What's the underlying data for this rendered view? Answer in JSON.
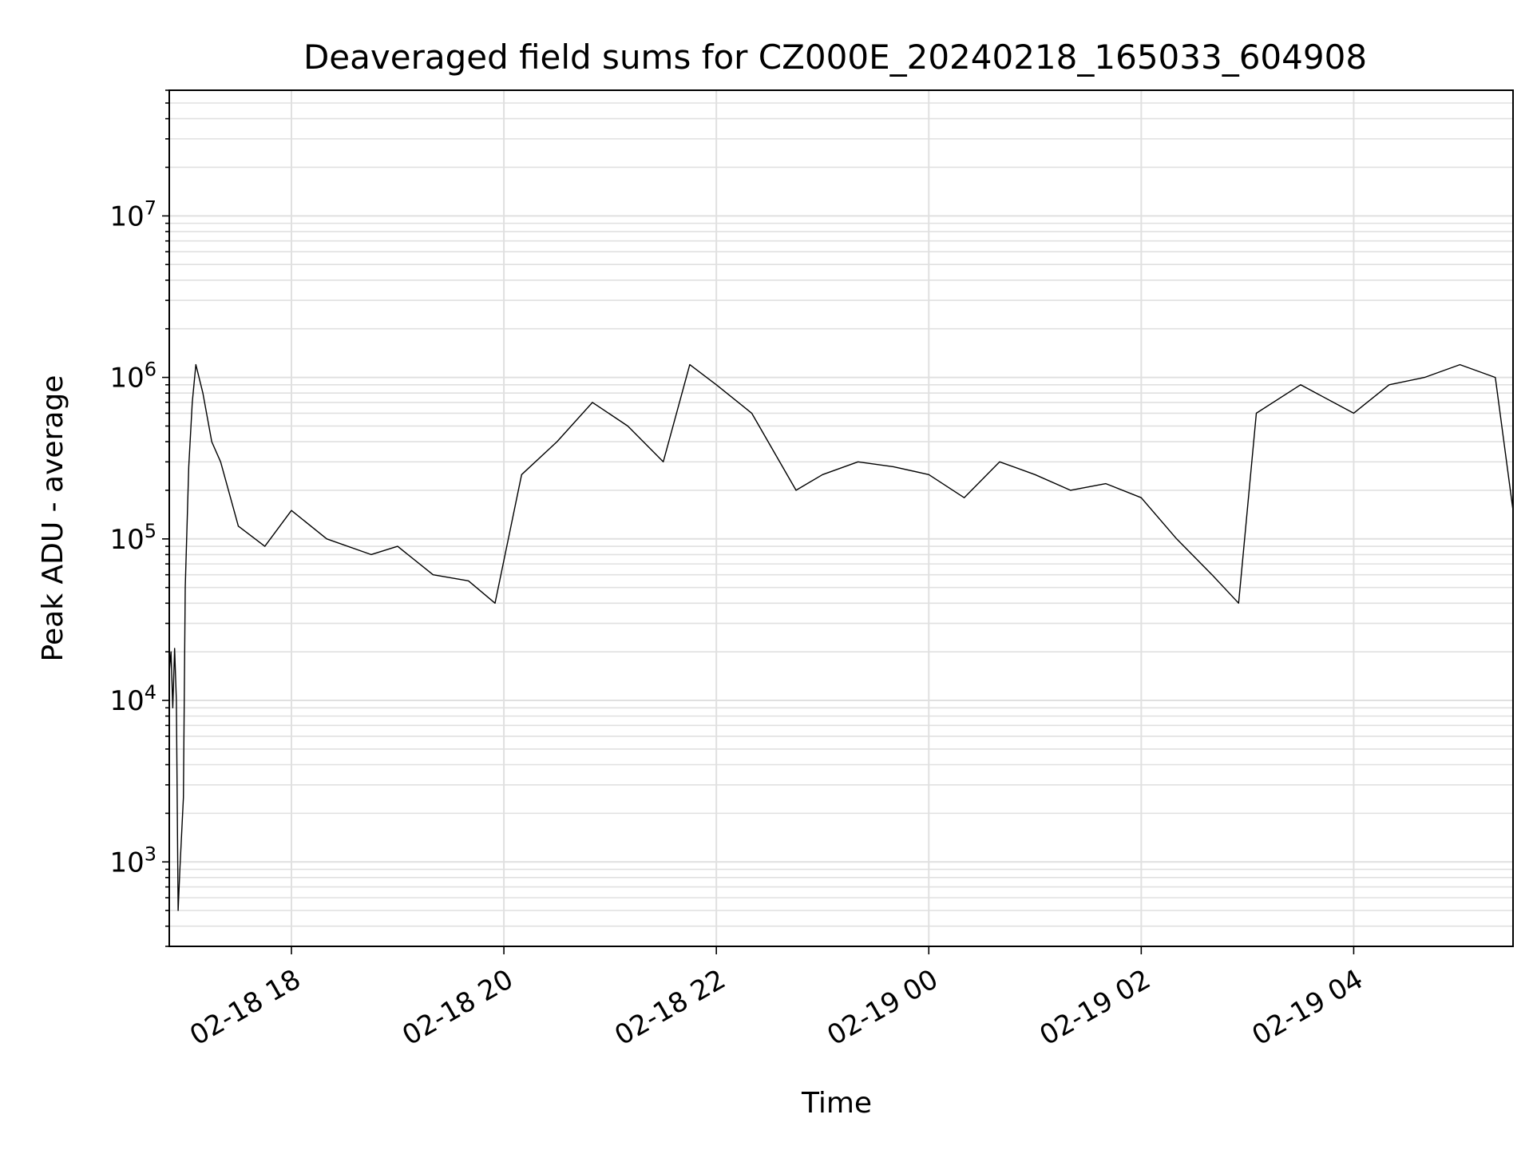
{
  "chart_data": {
    "type": "line",
    "title": "Deaveraged field sums for CZ000E_20240218_165033_604908",
    "xlabel": "Time",
    "ylabel": "Peak ADU - average",
    "yscale": "log",
    "ylim": [
      300,
      60000000
    ],
    "xlim": [
      "2024-02-18 16:51",
      "2024-02-19 05:30"
    ],
    "x_ticks": [
      {
        "t": "2024-02-18 18:00",
        "label": "02-18 18"
      },
      {
        "t": "2024-02-18 20:00",
        "label": "02-18 20"
      },
      {
        "t": "2024-02-18 22:00",
        "label": "02-18 22"
      },
      {
        "t": "2024-02-19 00:00",
        "label": "02-19 00"
      },
      {
        "t": "2024-02-19 02:00",
        "label": "02-19 02"
      },
      {
        "t": "2024-02-19 04:00",
        "label": "02-19 04"
      }
    ],
    "y_ticks": [
      {
        "value": 1000,
        "mantissa": "10",
        "exponent": "3"
      },
      {
        "value": 10000,
        "mantissa": "10",
        "exponent": "4"
      },
      {
        "value": 100000,
        "mantissa": "10",
        "exponent": "5"
      },
      {
        "value": 1000000,
        "mantissa": "10",
        "exponent": "6"
      },
      {
        "value": 10000000,
        "mantissa": "10",
        "exponent": "7"
      }
    ],
    "grid": true,
    "line_color": "#000000",
    "grid_color": "#e0e0e0",
    "series": [
      {
        "points": [
          [
            "2024-02-18 16:51",
            15000
          ],
          [
            "2024-02-18 16:52",
            20000
          ],
          [
            "2024-02-18 16:53",
            9000
          ],
          [
            "2024-02-18 16:54",
            21000
          ],
          [
            "2024-02-18 16:55",
            10000
          ],
          [
            "2024-02-18 16:56",
            500
          ],
          [
            "2024-02-18 16:57",
            900
          ],
          [
            "2024-02-18 16:59",
            2500
          ],
          [
            "2024-02-18 17:00",
            50000
          ],
          [
            "2024-02-18 17:02",
            280000
          ],
          [
            "2024-02-18 17:04",
            700000
          ],
          [
            "2024-02-18 17:06",
            1200000
          ],
          [
            "2024-02-18 17:10",
            800000
          ],
          [
            "2024-02-18 17:15",
            400000
          ],
          [
            "2024-02-18 17:20",
            300000
          ],
          [
            "2024-02-18 17:30",
            120000
          ],
          [
            "2024-02-18 17:45",
            90000
          ],
          [
            "2024-02-18 18:00",
            150000
          ],
          [
            "2024-02-18 18:20",
            100000
          ],
          [
            "2024-02-18 18:45",
            80000
          ],
          [
            "2024-02-18 19:00",
            90000
          ],
          [
            "2024-02-18 19:20",
            60000
          ],
          [
            "2024-02-18 19:40",
            55000
          ],
          [
            "2024-02-18 19:55",
            40000
          ],
          [
            "2024-02-18 20:10",
            250000
          ],
          [
            "2024-02-18 20:30",
            400000
          ],
          [
            "2024-02-18 20:50",
            700000
          ],
          [
            "2024-02-18 21:10",
            500000
          ],
          [
            "2024-02-18 21:30",
            300000
          ],
          [
            "2024-02-18 21:45",
            1200000
          ],
          [
            "2024-02-18 22:00",
            900000
          ],
          [
            "2024-02-18 22:20",
            600000
          ],
          [
            "2024-02-18 22:45",
            200000
          ],
          [
            "2024-02-18 23:00",
            250000
          ],
          [
            "2024-02-18 23:20",
            300000
          ],
          [
            "2024-02-18 23:40",
            280000
          ],
          [
            "2024-02-19 00:00",
            250000
          ],
          [
            "2024-02-19 00:20",
            180000
          ],
          [
            "2024-02-19 00:40",
            300000
          ],
          [
            "2024-02-19 01:00",
            250000
          ],
          [
            "2024-02-19 01:20",
            200000
          ],
          [
            "2024-02-19 01:40",
            220000
          ],
          [
            "2024-02-19 02:00",
            180000
          ],
          [
            "2024-02-19 02:20",
            100000
          ],
          [
            "2024-02-19 02:40",
            60000
          ],
          [
            "2024-02-19 02:55",
            40000
          ],
          [
            "2024-02-19 03:05",
            600000
          ],
          [
            "2024-02-19 03:30",
            900000
          ],
          [
            "2024-02-19 04:00",
            600000
          ],
          [
            "2024-02-19 04:20",
            900000
          ],
          [
            "2024-02-19 04:40",
            1000000
          ],
          [
            "2024-02-19 05:00",
            1200000
          ],
          [
            "2024-02-19 05:20",
            1000000
          ],
          [
            "2024-02-19 05:30",
            150000
          ]
        ]
      }
    ]
  }
}
